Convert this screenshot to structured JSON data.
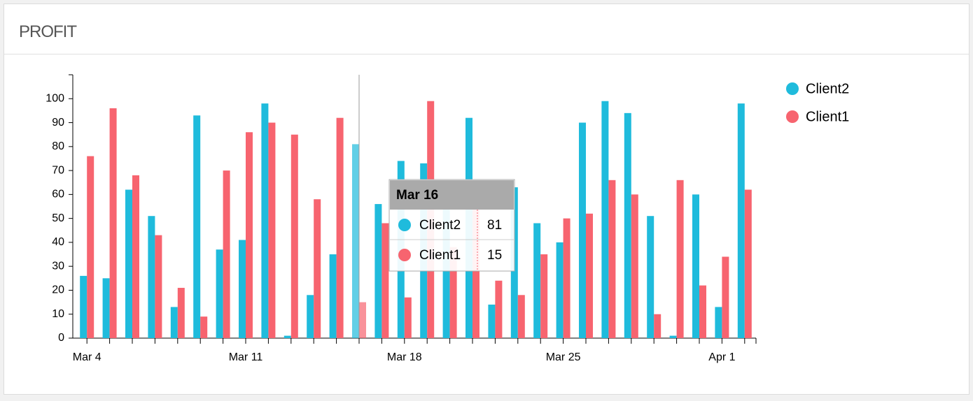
{
  "header": {
    "title": "PROFIT"
  },
  "chart_data": {
    "type": "bar",
    "categories": [
      "Mar 4",
      null,
      null,
      null,
      null,
      null,
      null,
      "Mar 11",
      null,
      null,
      null,
      null,
      null,
      null,
      "Mar 18",
      null,
      null,
      null,
      null,
      null,
      null,
      "Mar 25",
      null,
      null,
      null,
      null,
      null,
      null,
      "Apr 1",
      null
    ],
    "series": [
      {
        "name": "Client2",
        "color": "#1fbbdc",
        "values": [
          26,
          25,
          62,
          51,
          13,
          93,
          37,
          41,
          98,
          1,
          18,
          35,
          81,
          56,
          74,
          73,
          57,
          92,
          14,
          63,
          48,
          40,
          90,
          99,
          94,
          51,
          1,
          60,
          13,
          98
        ]
      },
      {
        "name": "Client1",
        "color": "#f7646f",
        "values": [
          76,
          96,
          68,
          43,
          21,
          9,
          70,
          86,
          90,
          85,
          58,
          92,
          15,
          48,
          17,
          99,
          38,
          60,
          24,
          18,
          35,
          50,
          52,
          66,
          60,
          10,
          66,
          22,
          34,
          62
        ]
      }
    ],
    "ylim": [
      0,
      110
    ],
    "yticks": [
      0,
      10,
      20,
      30,
      40,
      50,
      60,
      70,
      80,
      90,
      100
    ],
    "legend": "right",
    "tooltip": {
      "title": "Mar 16",
      "items": [
        {
          "name": "Client2",
          "value": 81
        },
        {
          "name": "Client1",
          "value": 15
        }
      ]
    }
  }
}
